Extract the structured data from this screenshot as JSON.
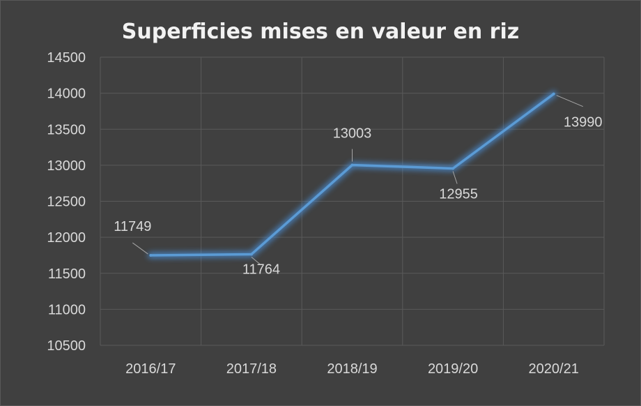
{
  "chart_data": {
    "type": "line",
    "title": "Superficies mises en valeur en riz",
    "categories": [
      "2016/17",
      "2017/18",
      "2018/19",
      "2019/20",
      "2020/21"
    ],
    "series": [
      {
        "values": [
          11749,
          11764,
          13003,
          12955,
          13990
        ],
        "color": "#5b9bd5"
      }
    ],
    "data_labels": [
      "11749",
      "11764",
      "13003",
      "12955",
      "13990"
    ],
    "ylim": [
      10500,
      14500
    ],
    "yticks": [
      10500,
      11000,
      11500,
      12000,
      12500,
      13000,
      13500,
      14000,
      14500
    ],
    "grid": true,
    "legend": "none",
    "colors": {
      "background": "#404040",
      "line": "#5b9bd5",
      "glow": "#4a8fd8",
      "text": "#d9d9d9",
      "grid": "#5a5a5a"
    }
  }
}
